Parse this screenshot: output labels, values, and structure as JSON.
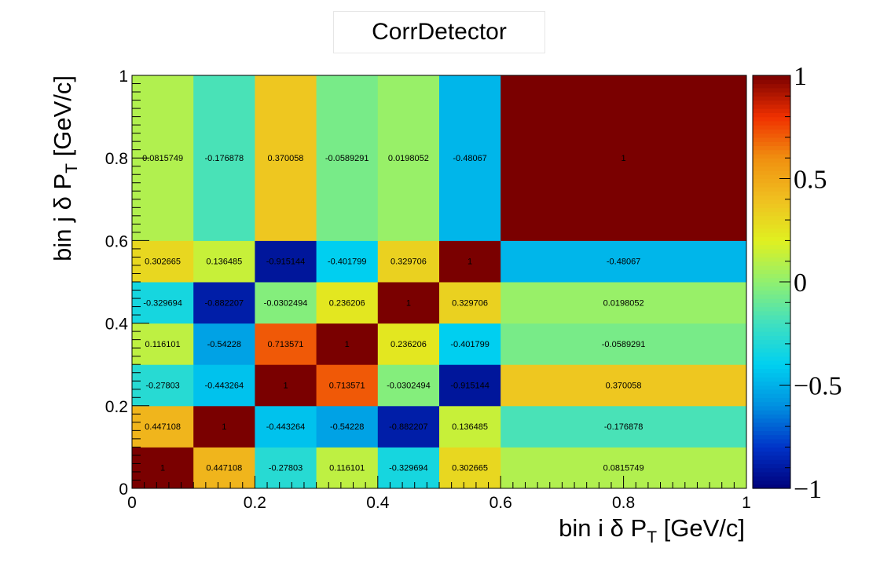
{
  "chart_data": {
    "type": "heatmap",
    "title": "CorrDetector",
    "xlabel": {
      "main": "bin i δ P",
      "sub": "T",
      "unit": " [GeV/c]"
    },
    "ylabel": {
      "main": "bin j δ P",
      "sub": "T",
      "unit": " [GeV/c]"
    },
    "bin_edges": [
      0,
      0.1,
      0.2,
      0.3,
      0.4,
      0.5,
      0.6,
      1.0
    ],
    "xlim": [
      0,
      1
    ],
    "ylim": [
      0,
      1
    ],
    "zlim": [
      -1,
      1
    ],
    "x_ticks": [
      "0",
      "0.2",
      "0.4",
      "0.6",
      "0.8",
      "1"
    ],
    "y_ticks": [
      "0",
      "0.2",
      "0.4",
      "0.6",
      "0.8",
      "1"
    ],
    "z_ticks": [
      "−1",
      "−0.5",
      "0",
      "0.5",
      "1"
    ],
    "values": [
      [
        1,
        0.447108,
        -0.27803,
        0.116101,
        -0.329694,
        0.302665,
        0.0815749
      ],
      [
        0.447108,
        1,
        -0.443264,
        -0.54228,
        -0.882207,
        0.136485,
        -0.176878
      ],
      [
        -0.27803,
        -0.443264,
        1,
        0.713571,
        -0.0302494,
        -0.915144,
        0.370058
      ],
      [
        0.116101,
        -0.54228,
        0.713571,
        1,
        0.236206,
        -0.401799,
        -0.0589291
      ],
      [
        -0.329694,
        -0.882207,
        -0.0302494,
        0.236206,
        1,
        0.329706,
        0.0198052
      ],
      [
        0.302665,
        0.136485,
        -0.915144,
        -0.401799,
        0.329706,
        1,
        -0.48067
      ],
      [
        0.0815749,
        -0.176878,
        0.370058,
        -0.0589291,
        0.0198052,
        -0.48067,
        1
      ]
    ],
    "value_labels": [
      [
        "1",
        "0.447108",
        "-0.27803",
        "0.116101",
        "-0.329694",
        "0.302665",
        "0.0815749"
      ],
      [
        "0.447108",
        "1",
        "-0.443264",
        "-0.54228",
        "-0.882207",
        "0.136485",
        "-0.176878"
      ],
      [
        "-0.27803",
        "-0.443264",
        "1",
        "0.713571",
        "-0.0302494",
        "-0.915144",
        "0.370058"
      ],
      [
        "0.116101",
        "-0.54228",
        "0.713571",
        "1",
        "0.236206",
        "-0.401799",
        "-0.0589291"
      ],
      [
        "-0.329694",
        "-0.882207",
        "-0.0302494",
        "0.236206",
        "1",
        "0.329706",
        "0.0198052"
      ],
      [
        "0.302665",
        "0.136485",
        "-0.915144",
        "-0.401799",
        "0.329706",
        "1",
        "-0.48067"
      ],
      [
        "0.0815749",
        "-0.176878",
        "0.370058",
        "-0.0589291",
        "0.0198052",
        "-0.48067",
        "1"
      ]
    ],
    "colormap": [
      "#00007a",
      "#0033c8",
      "#0090e0",
      "#00d0f0",
      "#40e0c0",
      "#90f070",
      "#e0f020",
      "#f0c020",
      "#f09010",
      "#f03000",
      "#7a0000"
    ],
    "grid": false,
    "legend": "none",
    "colorbar": "right"
  }
}
